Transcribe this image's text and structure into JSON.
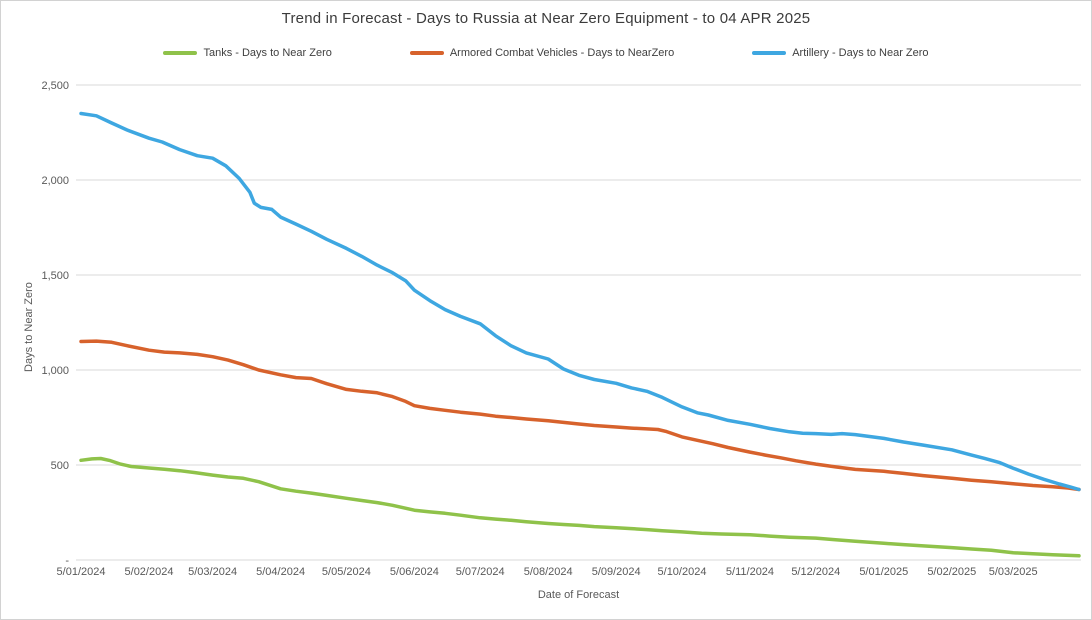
{
  "window": {
    "background": "#ffffff",
    "border_color": "#d2d2d2",
    "gridline_color": "#d9d9d9",
    "axis_text_color": "#595959",
    "title_color": "#3b3b3b"
  },
  "chart_data": {
    "type": "line",
    "title": "Trend in Forecast - Days to Russia at Near Zero Equipment - to 04 APR 2025",
    "xlabel": "Date of Forecast",
    "ylabel": "Days to Near Zero",
    "ylim": [
      0,
      2500
    ],
    "grid": true,
    "legend_position": "top",
    "y_ticks": [
      {
        "value": 2500,
        "label": "2,500"
      },
      {
        "value": 2000,
        "label": "2,000"
      },
      {
        "value": 1500,
        "label": "1,500"
      },
      {
        "value": 1000,
        "label": "1,000"
      },
      {
        "value": 500,
        "label": "500"
      },
      {
        "value": 0,
        "label": "-"
      }
    ],
    "x_start": "2024-01-05",
    "x_end": "2025-04-04",
    "x_ticks": [
      {
        "date": "2024-01-05",
        "label": "5/01/2024"
      },
      {
        "date": "2024-02-05",
        "label": "5/02/2024"
      },
      {
        "date": "2024-03-05",
        "label": "5/03/2024"
      },
      {
        "date": "2024-04-05",
        "label": "5/04/2024"
      },
      {
        "date": "2024-05-05",
        "label": "5/05/2024"
      },
      {
        "date": "2024-06-05",
        "label": "5/06/2024"
      },
      {
        "date": "2024-07-05",
        "label": "5/07/2024"
      },
      {
        "date": "2024-08-05",
        "label": "5/08/2024"
      },
      {
        "date": "2024-09-05",
        "label": "5/09/2024"
      },
      {
        "date": "2024-10-05",
        "label": "5/10/2024"
      },
      {
        "date": "2024-11-05",
        "label": "5/11/2024"
      },
      {
        "date": "2024-12-05",
        "label": "5/12/2024"
      },
      {
        "date": "2025-01-05",
        "label": "5/01/2025"
      },
      {
        "date": "2025-02-05",
        "label": "5/02/2025"
      },
      {
        "date": "2025-03-05",
        "label": "5/03/2025"
      }
    ],
    "series": [
      {
        "name": "Tanks - Days to Near Zero",
        "color": "#8fc24a",
        "points": [
          [
            "2024-01-05",
            525
          ],
          [
            "2024-01-10",
            532
          ],
          [
            "2024-01-14",
            534
          ],
          [
            "2024-01-18",
            524
          ],
          [
            "2024-01-23",
            505
          ],
          [
            "2024-01-28",
            492
          ],
          [
            "2024-02-05",
            484
          ],
          [
            "2024-02-12",
            478
          ],
          [
            "2024-02-19",
            470
          ],
          [
            "2024-02-26",
            460
          ],
          [
            "2024-03-05",
            447
          ],
          [
            "2024-03-12",
            437
          ],
          [
            "2024-03-19",
            430
          ],
          [
            "2024-03-26",
            412
          ],
          [
            "2024-04-05",
            375
          ],
          [
            "2024-04-12",
            362
          ],
          [
            "2024-04-19",
            352
          ],
          [
            "2024-04-26",
            340
          ],
          [
            "2024-05-05",
            325
          ],
          [
            "2024-05-12",
            313
          ],
          [
            "2024-05-19",
            302
          ],
          [
            "2024-05-26",
            288
          ],
          [
            "2024-06-05",
            262
          ],
          [
            "2024-06-12",
            253
          ],
          [
            "2024-06-19",
            246
          ],
          [
            "2024-06-26",
            236
          ],
          [
            "2024-07-05",
            222
          ],
          [
            "2024-07-12",
            215
          ],
          [
            "2024-07-19",
            209
          ],
          [
            "2024-07-26",
            201
          ],
          [
            "2024-08-05",
            192
          ],
          [
            "2024-08-12",
            187
          ],
          [
            "2024-08-19",
            182
          ],
          [
            "2024-08-26",
            176
          ],
          [
            "2024-09-05",
            170
          ],
          [
            "2024-09-12",
            165
          ],
          [
            "2024-09-19",
            160
          ],
          [
            "2024-09-26",
            154
          ],
          [
            "2024-10-05",
            148
          ],
          [
            "2024-10-14",
            141
          ],
          [
            "2024-10-23",
            137
          ],
          [
            "2024-11-05",
            133
          ],
          [
            "2024-11-14",
            126
          ],
          [
            "2024-11-23",
            120
          ],
          [
            "2024-12-05",
            115
          ],
          [
            "2024-12-14",
            107
          ],
          [
            "2024-12-23",
            99
          ],
          [
            "2025-01-05",
            88
          ],
          [
            "2025-01-14",
            81
          ],
          [
            "2025-01-23",
            74
          ],
          [
            "2025-02-05",
            65
          ],
          [
            "2025-02-14",
            58
          ],
          [
            "2025-02-23",
            51
          ],
          [
            "2025-03-05",
            38
          ],
          [
            "2025-03-14",
            33
          ],
          [
            "2025-03-23",
            28
          ],
          [
            "2025-04-04",
            22
          ]
        ]
      },
      {
        "name": "Armored Combat Vehicles - Days to NearZero",
        "color": "#d7622c",
        "points": [
          [
            "2024-01-05",
            1150
          ],
          [
            "2024-01-12",
            1152
          ],
          [
            "2024-01-19",
            1146
          ],
          [
            "2024-01-26",
            1128
          ],
          [
            "2024-02-05",
            1104
          ],
          [
            "2024-02-12",
            1094
          ],
          [
            "2024-02-19",
            1090
          ],
          [
            "2024-02-27",
            1082
          ],
          [
            "2024-03-05",
            1070
          ],
          [
            "2024-03-12",
            1052
          ],
          [
            "2024-03-19",
            1028
          ],
          [
            "2024-03-26",
            1000
          ],
          [
            "2024-04-05",
            975
          ],
          [
            "2024-04-12",
            960
          ],
          [
            "2024-04-19",
            955
          ],
          [
            "2024-04-26",
            928
          ],
          [
            "2024-05-05",
            898
          ],
          [
            "2024-05-12",
            888
          ],
          [
            "2024-05-19",
            880
          ],
          [
            "2024-05-26",
            860
          ],
          [
            "2024-06-01",
            835
          ],
          [
            "2024-06-05",
            812
          ],
          [
            "2024-06-12",
            798
          ],
          [
            "2024-06-19",
            788
          ],
          [
            "2024-06-26",
            778
          ],
          [
            "2024-07-05",
            768
          ],
          [
            "2024-07-12",
            757
          ],
          [
            "2024-07-19",
            750
          ],
          [
            "2024-07-26",
            742
          ],
          [
            "2024-08-05",
            733
          ],
          [
            "2024-08-12",
            724
          ],
          [
            "2024-08-19",
            716
          ],
          [
            "2024-08-26",
            708
          ],
          [
            "2024-09-05",
            700
          ],
          [
            "2024-09-12",
            694
          ],
          [
            "2024-09-19",
            690
          ],
          [
            "2024-09-24",
            687
          ],
          [
            "2024-09-28",
            676
          ],
          [
            "2024-10-05",
            648
          ],
          [
            "2024-10-12",
            630
          ],
          [
            "2024-10-19",
            612
          ],
          [
            "2024-10-26",
            592
          ],
          [
            "2024-11-05",
            568
          ],
          [
            "2024-11-12",
            552
          ],
          [
            "2024-11-19",
            538
          ],
          [
            "2024-11-26",
            522
          ],
          [
            "2024-12-05",
            505
          ],
          [
            "2024-12-14",
            490
          ],
          [
            "2024-12-23",
            477
          ],
          [
            "2025-01-05",
            467
          ],
          [
            "2025-01-14",
            456
          ],
          [
            "2025-01-23",
            444
          ],
          [
            "2025-02-05",
            430
          ],
          [
            "2025-02-14",
            420
          ],
          [
            "2025-02-23",
            412
          ],
          [
            "2025-03-05",
            401
          ],
          [
            "2025-03-14",
            392
          ],
          [
            "2025-03-23",
            386
          ],
          [
            "2025-03-30",
            379
          ],
          [
            "2025-04-04",
            371
          ]
        ]
      },
      {
        "name": "Artillery - Days to Near Zero",
        "color": "#3ea7e1",
        "points": [
          [
            "2024-01-05",
            2350
          ],
          [
            "2024-01-12",
            2338
          ],
          [
            "2024-01-19",
            2300
          ],
          [
            "2024-01-26",
            2263
          ],
          [
            "2024-02-05",
            2220
          ],
          [
            "2024-02-11",
            2200
          ],
          [
            "2024-02-19",
            2160
          ],
          [
            "2024-02-27",
            2128
          ],
          [
            "2024-03-05",
            2115
          ],
          [
            "2024-03-11",
            2075
          ],
          [
            "2024-03-17",
            2010
          ],
          [
            "2024-03-22",
            1935
          ],
          [
            "2024-03-24",
            1878
          ],
          [
            "2024-03-27",
            1856
          ],
          [
            "2024-04-01",
            1845
          ],
          [
            "2024-04-05",
            1805
          ],
          [
            "2024-04-12",
            1768
          ],
          [
            "2024-04-19",
            1730
          ],
          [
            "2024-04-26",
            1688
          ],
          [
            "2024-05-05",
            1640
          ],
          [
            "2024-05-12",
            1598
          ],
          [
            "2024-05-19",
            1552
          ],
          [
            "2024-05-26",
            1512
          ],
          [
            "2024-06-01",
            1470
          ],
          [
            "2024-06-05",
            1420
          ],
          [
            "2024-06-12",
            1365
          ],
          [
            "2024-06-19",
            1318
          ],
          [
            "2024-06-26",
            1282
          ],
          [
            "2024-07-05",
            1243
          ],
          [
            "2024-07-12",
            1180
          ],
          [
            "2024-07-19",
            1128
          ],
          [
            "2024-07-26",
            1090
          ],
          [
            "2024-08-05",
            1058
          ],
          [
            "2024-08-12",
            1005
          ],
          [
            "2024-08-19",
            972
          ],
          [
            "2024-08-26",
            950
          ],
          [
            "2024-09-05",
            930
          ],
          [
            "2024-09-12",
            906
          ],
          [
            "2024-09-19",
            888
          ],
          [
            "2024-09-26",
            856
          ],
          [
            "2024-10-05",
            806
          ],
          [
            "2024-10-12",
            775
          ],
          [
            "2024-10-17",
            763
          ],
          [
            "2024-10-26",
            735
          ],
          [
            "2024-11-05",
            714
          ],
          [
            "2024-11-14",
            692
          ],
          [
            "2024-11-23",
            675
          ],
          [
            "2024-11-29",
            667
          ],
          [
            "2024-12-05",
            665
          ],
          [
            "2024-12-12",
            661
          ],
          [
            "2024-12-17",
            665
          ],
          [
            "2024-12-23",
            660
          ],
          [
            "2025-01-05",
            640
          ],
          [
            "2025-01-14",
            621
          ],
          [
            "2025-01-23",
            605
          ],
          [
            "2025-02-05",
            580
          ],
          [
            "2025-02-14",
            552
          ],
          [
            "2025-02-20",
            535
          ],
          [
            "2025-02-27",
            512
          ],
          [
            "2025-03-05",
            483
          ],
          [
            "2025-03-12",
            452
          ],
          [
            "2025-03-19",
            425
          ],
          [
            "2025-03-26",
            400
          ],
          [
            "2025-03-31",
            385
          ],
          [
            "2025-04-04",
            371
          ]
        ]
      }
    ]
  }
}
